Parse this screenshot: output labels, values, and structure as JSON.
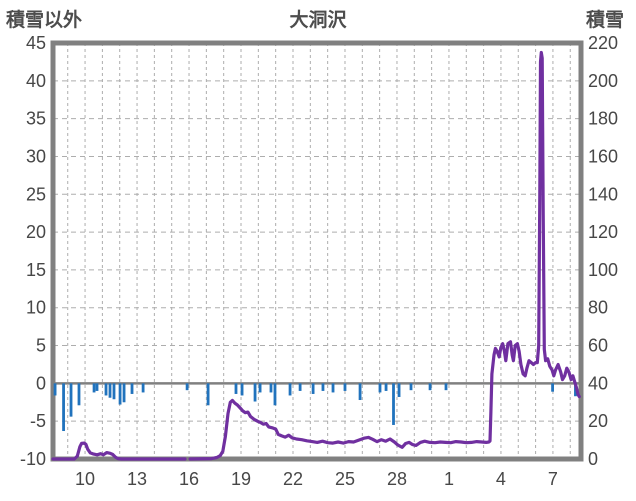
{
  "header": {
    "left_axis_title": "積雪以外",
    "chart_title": "大洞沢",
    "right_axis_title": "積雪"
  },
  "chart_data": {
    "type": "combo",
    "title": "大洞沢",
    "legend": "none",
    "grid": {
      "vertical": "dashed",
      "horizontal": "dashed",
      "zero_line_solid": true
    },
    "colors": {
      "bars": "#2173bd",
      "line": "#7030a0",
      "frame": "#808080",
      "grid": "#adadad",
      "zero_line": "#808080",
      "text": "#474747"
    },
    "left_axis": {
      "title": "積雪以外",
      "min": -10,
      "max": 45,
      "tick_step": 5,
      "ticks": [
        45,
        40,
        35,
        30,
        25,
        20,
        15,
        10,
        5,
        0,
        -5,
        -10
      ]
    },
    "right_axis": {
      "title": "積雪",
      "min": 0,
      "max": 220,
      "tick_step": 20,
      "ticks": [
        220,
        200,
        180,
        160,
        140,
        120,
        100,
        80,
        60,
        40,
        20,
        0
      ]
    },
    "x_axis": {
      "tick_labels": [
        "10",
        "13",
        "16",
        "19",
        "22",
        "25",
        "28",
        "1",
        "4",
        "7"
      ],
      "tick_unit_positions": [
        0,
        3,
        6,
        9,
        12,
        15,
        18,
        21,
        24,
        27
      ],
      "grid_unit_start": -1,
      "grid_unit_end": 28,
      "unit_min": -1.85,
      "unit_max": 28.62
    },
    "series": [
      {
        "name": "積雪以外",
        "type": "bar",
        "axis": "left",
        "color": "#2173bd",
        "points": [
          [
            -1.73,
            -1.6
          ],
          [
            -1.24,
            -6.3
          ],
          [
            -0.81,
            -4.4
          ],
          [
            -0.35,
            -2.9
          ],
          [
            0.52,
            -1.2
          ],
          [
            0.69,
            -1.0
          ],
          [
            1.21,
            -1.6
          ],
          [
            1.44,
            -1.9
          ],
          [
            1.67,
            -2.1
          ],
          [
            2.02,
            -2.8
          ],
          [
            2.25,
            -2.5
          ],
          [
            2.71,
            -1.4
          ],
          [
            3.35,
            -1.2
          ],
          [
            5.89,
            -0.9
          ],
          [
            7.1,
            -2.9
          ],
          [
            8.71,
            -1.4
          ],
          [
            9.06,
            -1.6
          ],
          [
            9.81,
            -2.4
          ],
          [
            10.1,
            -1.2
          ],
          [
            10.73,
            -1.2
          ],
          [
            10.96,
            -2.9
          ],
          [
            11.83,
            -1.6
          ],
          [
            12.41,
            -1.0
          ],
          [
            13.16,
            -1.4
          ],
          [
            13.73,
            -1.0
          ],
          [
            14.31,
            -1.2
          ],
          [
            15.0,
            -1.0
          ],
          [
            15.87,
            -2.2
          ],
          [
            17.02,
            -1.2
          ],
          [
            17.37,
            -1.0
          ],
          [
            17.8,
            -5.5
          ],
          [
            18.12,
            -1.8
          ],
          [
            18.81,
            -0.9
          ],
          [
            19.91,
            -0.9
          ],
          [
            20.83,
            -0.9
          ],
          [
            26.98,
            -1.1
          ],
          [
            28.3,
            -1.7
          ]
        ]
      },
      {
        "name": "積雪",
        "type": "line",
        "axis": "right",
        "color": "#7030a0",
        "segments": [
          [
            [
              -1.85,
              0
            ],
            [
              -0.62,
              0
            ],
            [
              -0.45,
              1.5
            ],
            [
              -0.3,
              6.5
            ],
            [
              -0.2,
              8.3
            ],
            [
              -0.05,
              8.4
            ],
            [
              0.05,
              7.8
            ],
            [
              0.15,
              5.2
            ],
            [
              0.3,
              3.2
            ],
            [
              0.5,
              2.6
            ],
            [
              0.7,
              2.2
            ],
            [
              0.9,
              2.8
            ],
            [
              1.05,
              2.2
            ],
            [
              1.25,
              3.4
            ],
            [
              1.45,
              3.0
            ],
            [
              1.6,
              2.4
            ],
            [
              1.75,
              1.0
            ],
            [
              1.9,
              0.2
            ],
            [
              2.1,
              0
            ],
            [
              5.77,
              0
            ]
          ],
          [
            [
              6.06,
              0
            ],
            [
              7.3,
              0.2
            ],
            [
              7.6,
              0.8
            ],
            [
              7.8,
              1.8
            ],
            [
              7.95,
              4
            ],
            [
              8.1,
              12
            ],
            [
              8.25,
              24
            ],
            [
              8.38,
              30
            ],
            [
              8.5,
              31
            ],
            [
              8.65,
              29.5
            ],
            [
              8.8,
              28.5
            ],
            [
              8.95,
              27
            ],
            [
              9.1,
              25.5
            ],
            [
              9.25,
              24.5
            ],
            [
              9.4,
              24.8
            ],
            [
              9.55,
              22.5
            ],
            [
              9.75,
              21
            ],
            [
              9.95,
              20
            ],
            [
              10.15,
              19.2
            ],
            [
              10.3,
              18.4
            ],
            [
              10.45,
              18.8
            ],
            [
              10.6,
              17
            ],
            [
              10.8,
              16.5
            ],
            [
              11.0,
              15.8
            ],
            [
              11.15,
              13
            ],
            [
              11.35,
              12.2
            ],
            [
              11.55,
              11.6
            ],
            [
              11.75,
              12.6
            ],
            [
              11.95,
              11.2
            ],
            [
              12.2,
              10.6
            ],
            [
              12.5,
              10.2
            ],
            [
              12.8,
              9.6
            ],
            [
              13.1,
              9.2
            ],
            [
              13.4,
              8.8
            ],
            [
              13.7,
              9.4
            ],
            [
              14.0,
              8.6
            ],
            [
              14.3,
              8.4
            ],
            [
              14.6,
              9.0
            ],
            [
              14.9,
              8.4
            ],
            [
              15.2,
              9.2
            ],
            [
              15.5,
              9.0
            ],
            [
              15.8,
              10.0
            ],
            [
              16.1,
              11.0
            ],
            [
              16.35,
              11.4
            ],
            [
              16.6,
              10.4
            ],
            [
              16.85,
              9.2
            ],
            [
              17.1,
              10.2
            ],
            [
              17.35,
              9.4
            ],
            [
              17.6,
              10.6
            ],
            [
              17.85,
              9.0
            ],
            [
              18.05,
              7.4
            ],
            [
              18.3,
              6.2
            ],
            [
              18.5,
              8.2
            ],
            [
              18.7,
              8.8
            ],
            [
              18.9,
              7.6
            ],
            [
              19.1,
              7.2
            ],
            [
              19.35,
              8.8
            ],
            [
              19.6,
              9.4
            ],
            [
              19.9,
              8.8
            ],
            [
              20.2,
              8.6
            ],
            [
              20.5,
              9.0
            ],
            [
              20.8,
              8.8
            ],
            [
              21.1,
              8.6
            ],
            [
              21.4,
              9.2
            ],
            [
              21.7,
              9.0
            ],
            [
              22.0,
              8.6
            ],
            [
              22.3,
              8.8
            ],
            [
              22.6,
              9.2
            ],
            [
              22.9,
              9.0
            ],
            [
              23.15,
              8.8
            ],
            [
              23.3,
              9.0
            ],
            [
              23.37,
              9.5
            ],
            [
              23.42,
              25
            ],
            [
              23.48,
              45
            ],
            [
              23.6,
              55
            ],
            [
              23.68,
              58.5
            ],
            [
              23.78,
              57
            ],
            [
              23.9,
              54
            ],
            [
              24.0,
              59
            ],
            [
              24.1,
              61
            ],
            [
              24.2,
              57
            ],
            [
              24.28,
              52
            ],
            [
              24.4,
              61
            ],
            [
              24.55,
              62
            ],
            [
              24.65,
              55
            ],
            [
              24.72,
              52
            ],
            [
              24.82,
              60
            ],
            [
              24.95,
              61
            ],
            [
              25.05,
              57
            ],
            [
              25.15,
              50
            ],
            [
              25.28,
              45
            ],
            [
              25.4,
              44
            ],
            [
              25.5,
              48
            ],
            [
              25.62,
              52
            ],
            [
              25.75,
              51
            ],
            [
              25.88,
              50
            ],
            [
              26.0,
              51
            ],
            [
              26.1,
              51
            ],
            [
              26.18,
              60
            ],
            [
              26.24,
              140
            ],
            [
              26.28,
              210
            ],
            [
              26.33,
              215
            ],
            [
              26.38,
              212
            ],
            [
              26.44,
              130
            ],
            [
              26.5,
              58
            ],
            [
              26.58,
              52
            ],
            [
              26.7,
              53
            ],
            [
              26.82,
              49
            ],
            [
              26.95,
              47
            ],
            [
              27.05,
              44
            ],
            [
              27.15,
              47
            ],
            [
              27.3,
              50
            ],
            [
              27.45,
              46
            ],
            [
              27.55,
              42
            ],
            [
              27.68,
              44
            ],
            [
              27.8,
              48
            ],
            [
              27.92,
              46
            ],
            [
              28.05,
              42
            ],
            [
              28.15,
              44
            ],
            [
              28.25,
              41
            ],
            [
              28.35,
              38
            ],
            [
              28.45,
              34
            ],
            [
              28.52,
              33
            ]
          ]
        ]
      }
    ]
  }
}
